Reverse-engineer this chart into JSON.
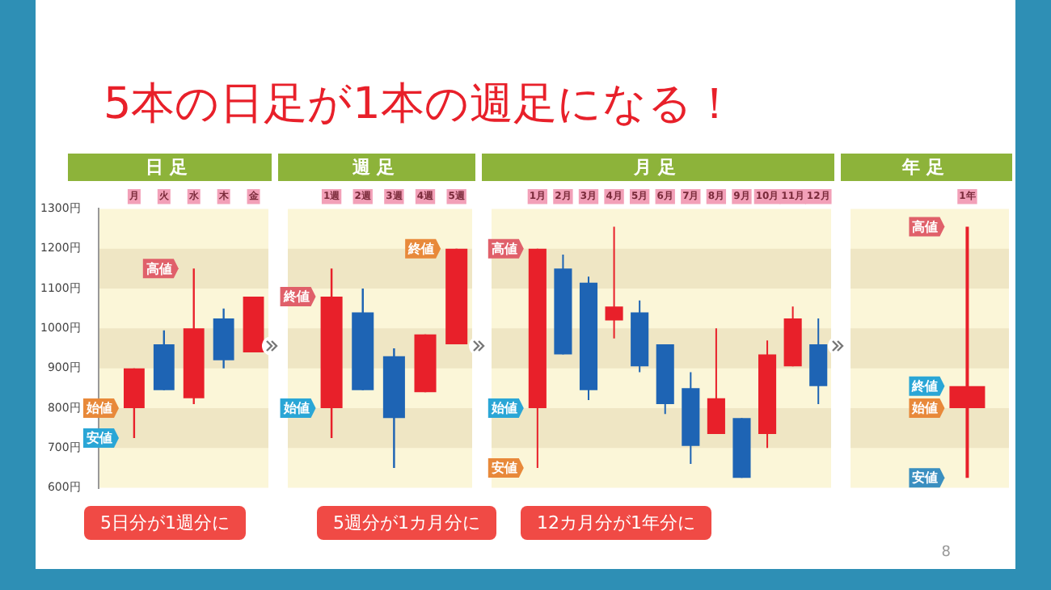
{
  "chart_data": [
    {
      "type": "candlestick",
      "subtitle": "5本の日足が1本の週足になる！",
      "title": "日足",
      "categories": [
        "月",
        "火",
        "水",
        "木",
        "金"
      ],
      "ohlc": [
        [
          800,
          900,
          725,
          900
        ],
        [
          960,
          995,
          845,
          845
        ],
        [
          825,
          1150,
          810,
          1000
        ],
        [
          1025,
          1050,
          900,
          920
        ],
        [
          940,
          1080,
          940,
          1080
        ]
      ],
      "colors": [
        "#e8202a",
        "#1e64b4",
        "#e8202a",
        "#1e64b4",
        "#e8202a"
      ],
      "ylim": [
        600,
        1300
      ],
      "yticks": [
        {
          "value": 600,
          "label": "600円"
        },
        {
          "value": 700,
          "label": "700円"
        },
        {
          "value": 800,
          "label": "800円"
        },
        {
          "value": 900,
          "label": "900円"
        },
        {
          "value": 1000,
          "label": "1000円"
        },
        {
          "value": 1100,
          "label": "1100円"
        },
        {
          "value": 1200,
          "label": "1200円"
        },
        {
          "value": 1300,
          "label": "1300円"
        }
      ],
      "bands": [
        {
          "axis": "y",
          "from": 700,
          "to": 800,
          "color": "#efe6c4"
        },
        {
          "axis": "y",
          "from": 900,
          "to": 1000,
          "color": "#efe6c4"
        },
        {
          "axis": "y",
          "from": 1100,
          "to": 1200,
          "color": "#efe6c4"
        }
      ],
      "annotations": [
        {
          "text": "高値",
          "x": "水",
          "y": 1150
        },
        {
          "text": "安値",
          "x": "月",
          "y": 725
        },
        {
          "text": "始値",
          "x": "月",
          "y": 800
        },
        "5日分が1週分に"
      ]
    },
    {
      "type": "candlestick",
      "title": "週足",
      "categories": [
        "1週",
        "2週",
        "3週",
        "4週",
        "5週"
      ],
      "ohlc": [
        [
          800,
          1150,
          725,
          1080
        ],
        [
          1040,
          1100,
          845,
          845
        ],
        [
          930,
          950,
          650,
          775
        ],
        [
          840,
          985,
          840,
          985
        ],
        [
          960,
          1200,
          960,
          1200
        ]
      ],
      "colors": [
        "#e8202a",
        "#1e64b4",
        "#1e64b4",
        "#e8202a",
        "#e8202a"
      ],
      "ylim": [
        600,
        1300
      ],
      "tick_labels": "x",
      "bands": [
        {
          "axis": "y",
          "from": 700,
          "to": 800,
          "color": "#efe6c4"
        },
        {
          "axis": "y",
          "from": 900,
          "to": 1000,
          "color": "#efe6c4"
        },
        {
          "axis": "y",
          "from": 1100,
          "to": 1200,
          "color": "#efe6c4"
        }
      ],
      "annotations": [
        {
          "text": "終値",
          "x": "1週",
          "y": 1080
        },
        {
          "text": "始値",
          "x": "1週",
          "y": 800
        },
        {
          "text": "終値",
          "x": "5週",
          "y": 1200
        },
        "5週分が1カ月分に"
      ]
    },
    {
      "type": "candlestick",
      "title": "月足",
      "categories": [
        "1月",
        "2月",
        "3月",
        "4月",
        "5月",
        "6月",
        "7月",
        "8月",
        "9月",
        "10月",
        "11月",
        "12月"
      ],
      "ohlc": [
        [
          800,
          1200,
          650,
          1200
        ],
        [
          1150,
          1185,
          935,
          935
        ],
        [
          1115,
          1130,
          820,
          845
        ],
        [
          1020,
          1255,
          975,
          1055
        ],
        [
          1040,
          1070,
          890,
          905
        ],
        [
          960,
          960,
          785,
          810
        ],
        [
          850,
          890,
          660,
          705
        ],
        [
          735,
          1000,
          735,
          825
        ],
        [
          775,
          775,
          625,
          625
        ],
        [
          735,
          970,
          700,
          935
        ],
        [
          905,
          1055,
          905,
          1025
        ],
        [
          960,
          1025,
          810,
          855
        ]
      ],
      "colors": [
        "#e8202a",
        "#1e64b4",
        "#1e64b4",
        "#e8202a",
        "#1e64b4",
        "#1e64b4",
        "#1e64b4",
        "#e8202a",
        "#1e64b4",
        "#e8202a",
        "#e8202a",
        "#1e64b4"
      ],
      "ylim": [
        600,
        1300
      ],
      "tick_labels": "x",
      "bands": [
        {
          "axis": "y",
          "from": 700,
          "to": 800,
          "color": "#efe6c4"
        },
        {
          "axis": "y",
          "from": 900,
          "to": 1000,
          "color": "#efe6c4"
        },
        {
          "axis": "y",
          "from": 1100,
          "to": 1200,
          "color": "#efe6c4"
        }
      ],
      "annotations": [
        {
          "text": "高値",
          "x": "1月",
          "y": 1200
        },
        {
          "text": "始値",
          "x": "1月",
          "y": 800
        },
        {
          "text": "安値",
          "x": "1月",
          "y": 650
        },
        "12カ月分が1年分に"
      ]
    },
    {
      "type": "candlestick",
      "title": "年足",
      "categories": [
        "1年"
      ],
      "ohlc": [
        [
          800,
          1255,
          625,
          855
        ]
      ],
      "colors": [
        "#e8202a"
      ],
      "ylim": [
        600,
        1300
      ],
      "tick_labels": "x",
      "bands": [
        {
          "axis": "y",
          "from": 700,
          "to": 800,
          "color": "#efe6c4"
        },
        {
          "axis": "y",
          "from": 900,
          "to": 1000,
          "color": "#efe6c4"
        },
        {
          "axis": "y",
          "from": 1100,
          "to": 1200,
          "color": "#efe6c4"
        }
      ],
      "annotations": [
        {
          "text": "高値",
          "x": "1年",
          "y": 1255
        },
        {
          "text": "終値",
          "x": "1年",
          "y": 855
        },
        {
          "text": "始値",
          "x": "1年",
          "y": 800
        },
        {
          "text": "安値",
          "x": "1年",
          "y": 625
        },
        "8"
      ]
    }
  ]
}
